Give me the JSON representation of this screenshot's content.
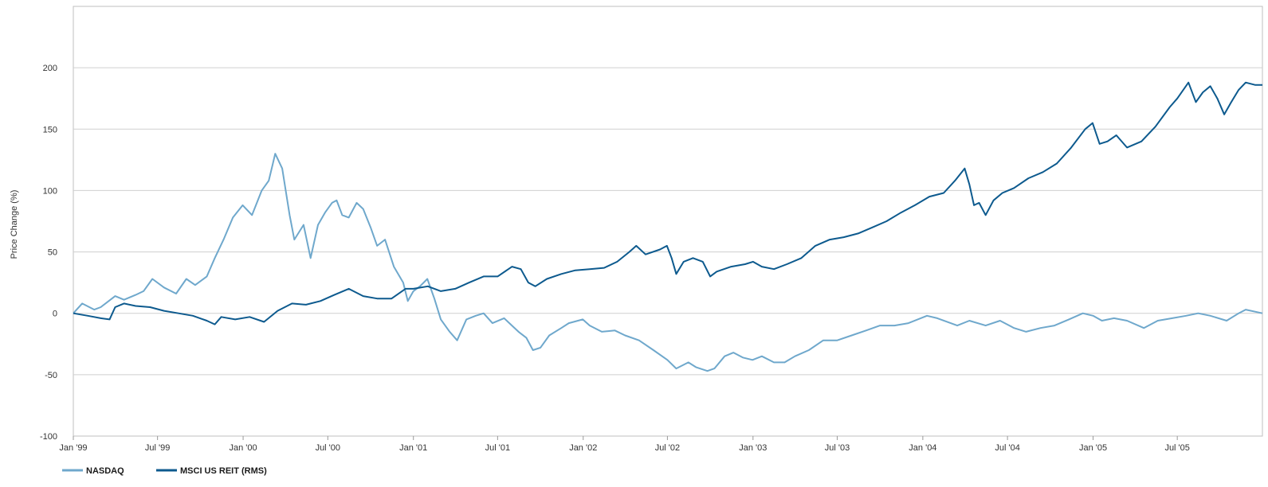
{
  "chart_data": {
    "type": "line",
    "title": "",
    "xlabel": "",
    "ylabel": "Price Change (%)",
    "ylim": [
      -100,
      250
    ],
    "yticks": [
      -100,
      -50,
      0,
      50,
      100,
      150,
      200
    ],
    "grid": true,
    "legend_position": "bottom-left",
    "x_axis": {
      "type": "date",
      "range": [
        "1999-01-01",
        "2005-12-31"
      ],
      "ticks": [
        {
          "date": "1999-01-01",
          "label": "Jan '99"
        },
        {
          "date": "1999-07-01",
          "label": "Jul '99"
        },
        {
          "date": "2000-01-01",
          "label": "Jan '00"
        },
        {
          "date": "2000-07-01",
          "label": "Jul '00"
        },
        {
          "date": "2001-01-01",
          "label": "Jan '01"
        },
        {
          "date": "2001-07-01",
          "label": "Jul '01"
        },
        {
          "date": "2002-01-01",
          "label": "Jan '02"
        },
        {
          "date": "2002-07-01",
          "label": "Jul '02"
        },
        {
          "date": "2003-01-01",
          "label": "Jan '03"
        },
        {
          "date": "2003-07-01",
          "label": "Jul '03"
        },
        {
          "date": "2004-01-01",
          "label": "Jan '04"
        },
        {
          "date": "2004-07-01",
          "label": "Jul '04"
        },
        {
          "date": "2005-01-01",
          "label": "Jan '05"
        },
        {
          "date": "2005-07-01",
          "label": "Jul '05"
        }
      ]
    },
    "series": [
      {
        "name": "NASDAQ",
        "color": "#6fa8cc",
        "points": [
          [
            "1999-01-01",
            0
          ],
          [
            "1999-01-20",
            8
          ],
          [
            "1999-02-15",
            3
          ],
          [
            "1999-03-01",
            5
          ],
          [
            "1999-04-01",
            14
          ],
          [
            "1999-04-20",
            11
          ],
          [
            "1999-05-15",
            15
          ],
          [
            "1999-06-01",
            18
          ],
          [
            "1999-06-20",
            28
          ],
          [
            "1999-07-15",
            21
          ],
          [
            "1999-08-10",
            16
          ],
          [
            "1999-09-01",
            28
          ],
          [
            "1999-09-20",
            23
          ],
          [
            "1999-10-15",
            30
          ],
          [
            "1999-11-01",
            45
          ],
          [
            "1999-11-20",
            60
          ],
          [
            "1999-12-10",
            78
          ],
          [
            "1999-12-31",
            88
          ],
          [
            "2000-01-20",
            80
          ],
          [
            "2000-02-10",
            100
          ],
          [
            "2000-02-25",
            108
          ],
          [
            "2000-03-05",
            122
          ],
          [
            "2000-03-10",
            130
          ],
          [
            "2000-03-25",
            118
          ],
          [
            "2000-04-10",
            80
          ],
          [
            "2000-04-20",
            60
          ],
          [
            "2000-05-10",
            72
          ],
          [
            "2000-05-25",
            45
          ],
          [
            "2000-06-10",
            72
          ],
          [
            "2000-06-25",
            82
          ],
          [
            "2000-07-10",
            90
          ],
          [
            "2000-07-20",
            92
          ],
          [
            "2000-08-01",
            80
          ],
          [
            "2000-08-15",
            78
          ],
          [
            "2000-09-01",
            90
          ],
          [
            "2000-09-15",
            85
          ],
          [
            "2000-10-01",
            70
          ],
          [
            "2000-10-15",
            55
          ],
          [
            "2000-11-01",
            60
          ],
          [
            "2000-11-20",
            38
          ],
          [
            "2000-12-10",
            25
          ],
          [
            "2000-12-20",
            10
          ],
          [
            "2001-01-01",
            18
          ],
          [
            "2001-01-15",
            22
          ],
          [
            "2001-01-31",
            28
          ],
          [
            "2001-02-15",
            12
          ],
          [
            "2001-03-01",
            -5
          ],
          [
            "2001-03-20",
            -15
          ],
          [
            "2001-04-05",
            -22
          ],
          [
            "2001-04-25",
            -5
          ],
          [
            "2001-05-15",
            -2
          ],
          [
            "2001-06-01",
            0
          ],
          [
            "2001-06-20",
            -8
          ],
          [
            "2001-07-15",
            -4
          ],
          [
            "2001-08-15",
            -15
          ],
          [
            "2001-09-01",
            -20
          ],
          [
            "2001-09-15",
            -30
          ],
          [
            "2001-10-01",
            -28
          ],
          [
            "2001-10-20",
            -18
          ],
          [
            "2001-11-15",
            -12
          ],
          [
            "2001-12-01",
            -8
          ],
          [
            "2001-12-31",
            -5
          ],
          [
            "2002-01-15",
            -10
          ],
          [
            "2002-02-10",
            -15
          ],
          [
            "2002-03-10",
            -14
          ],
          [
            "2002-04-01",
            -18
          ],
          [
            "2002-05-01",
            -22
          ],
          [
            "2002-06-01",
            -30
          ],
          [
            "2002-07-01",
            -38
          ],
          [
            "2002-07-20",
            -45
          ],
          [
            "2002-08-15",
            -40
          ],
          [
            "2002-09-01",
            -44
          ],
          [
            "2002-09-25",
            -47
          ],
          [
            "2002-10-10",
            -45
          ],
          [
            "2002-11-01",
            -35
          ],
          [
            "2002-11-20",
            -32
          ],
          [
            "2002-12-10",
            -36
          ],
          [
            "2002-12-31",
            -38
          ],
          [
            "2003-01-20",
            -35
          ],
          [
            "2003-02-15",
            -40
          ],
          [
            "2003-03-10",
            -40
          ],
          [
            "2003-04-01",
            -35
          ],
          [
            "2003-05-01",
            -30
          ],
          [
            "2003-06-01",
            -22
          ],
          [
            "2003-07-01",
            -22
          ],
          [
            "2003-08-01",
            -18
          ],
          [
            "2003-09-01",
            -14
          ],
          [
            "2003-10-01",
            -10
          ],
          [
            "2003-11-01",
            -10
          ],
          [
            "2003-12-01",
            -8
          ],
          [
            "2004-01-10",
            -2
          ],
          [
            "2004-02-01",
            -4
          ],
          [
            "2004-03-15",
            -10
          ],
          [
            "2004-04-10",
            -6
          ],
          [
            "2004-05-15",
            -10
          ],
          [
            "2004-06-15",
            -6
          ],
          [
            "2004-07-15",
            -12
          ],
          [
            "2004-08-10",
            -15
          ],
          [
            "2004-09-10",
            -12
          ],
          [
            "2004-10-10",
            -10
          ],
          [
            "2004-11-10",
            -5
          ],
          [
            "2004-12-10",
            0
          ],
          [
            "2005-01-01",
            -2
          ],
          [
            "2005-01-20",
            -6
          ],
          [
            "2005-02-15",
            -4
          ],
          [
            "2005-03-15",
            -6
          ],
          [
            "2005-04-20",
            -12
          ],
          [
            "2005-05-20",
            -6
          ],
          [
            "2005-06-20",
            -4
          ],
          [
            "2005-07-20",
            -2
          ],
          [
            "2005-08-15",
            0
          ],
          [
            "2005-09-10",
            -2
          ],
          [
            "2005-10-15",
            -6
          ],
          [
            "2005-11-10",
            0
          ],
          [
            "2005-11-25",
            3
          ],
          [
            "2005-12-31",
            0
          ]
        ]
      },
      {
        "name": "MSCI US REIT (RMS)",
        "color": "#0d5a8e",
        "points": [
          [
            "1999-01-01",
            0
          ],
          [
            "1999-02-01",
            -2
          ],
          [
            "1999-03-01",
            -4
          ],
          [
            "1999-03-20",
            -5
          ],
          [
            "1999-04-01",
            5
          ],
          [
            "1999-04-20",
            8
          ],
          [
            "1999-05-15",
            6
          ],
          [
            "1999-06-15",
            5
          ],
          [
            "1999-07-15",
            2
          ],
          [
            "1999-08-15",
            0
          ],
          [
            "1999-09-15",
            -2
          ],
          [
            "1999-10-15",
            -6
          ],
          [
            "1999-11-01",
            -9
          ],
          [
            "1999-11-15",
            -3
          ],
          [
            "1999-12-15",
            -5
          ],
          [
            "2000-01-15",
            -3
          ],
          [
            "2000-02-15",
            -7
          ],
          [
            "2000-03-15",
            2
          ],
          [
            "2000-04-15",
            8
          ],
          [
            "2000-05-15",
            7
          ],
          [
            "2000-06-15",
            10
          ],
          [
            "2000-07-15",
            15
          ],
          [
            "2000-08-15",
            20
          ],
          [
            "2000-09-15",
            14
          ],
          [
            "2000-10-15",
            12
          ],
          [
            "2000-11-15",
            12
          ],
          [
            "2000-12-15",
            20
          ],
          [
            "2001-01-01",
            20
          ],
          [
            "2001-02-01",
            22
          ],
          [
            "2001-03-01",
            18
          ],
          [
            "2001-04-01",
            20
          ],
          [
            "2001-05-01",
            25
          ],
          [
            "2001-06-01",
            30
          ],
          [
            "2001-07-01",
            30
          ],
          [
            "2001-08-01",
            38
          ],
          [
            "2001-08-20",
            36
          ],
          [
            "2001-09-05",
            25
          ],
          [
            "2001-09-20",
            22
          ],
          [
            "2001-10-15",
            28
          ],
          [
            "2001-11-15",
            32
          ],
          [
            "2001-12-15",
            35
          ],
          [
            "2002-01-15",
            36
          ],
          [
            "2002-02-15",
            37
          ],
          [
            "2002-03-15",
            42
          ],
          [
            "2002-04-10",
            50
          ],
          [
            "2002-04-25",
            55
          ],
          [
            "2002-05-15",
            48
          ],
          [
            "2002-06-15",
            52
          ],
          [
            "2002-06-30",
            55
          ],
          [
            "2002-07-10",
            45
          ],
          [
            "2002-07-20",
            32
          ],
          [
            "2002-08-05",
            42
          ],
          [
            "2002-08-25",
            45
          ],
          [
            "2002-09-15",
            42
          ],
          [
            "2002-10-01",
            30
          ],
          [
            "2002-10-15",
            34
          ],
          [
            "2002-11-15",
            38
          ],
          [
            "2002-12-15",
            40
          ],
          [
            "2003-01-01",
            42
          ],
          [
            "2003-01-20",
            38
          ],
          [
            "2003-02-15",
            36
          ],
          [
            "2003-03-15",
            40
          ],
          [
            "2003-04-15",
            45
          ],
          [
            "2003-05-15",
            55
          ],
          [
            "2003-06-15",
            60
          ],
          [
            "2003-07-15",
            62
          ],
          [
            "2003-08-15",
            65
          ],
          [
            "2003-09-15",
            70
          ],
          [
            "2003-10-15",
            75
          ],
          [
            "2003-11-15",
            82
          ],
          [
            "2003-12-15",
            88
          ],
          [
            "2004-01-15",
            95
          ],
          [
            "2004-02-15",
            98
          ],
          [
            "2004-03-10",
            108
          ],
          [
            "2004-03-31",
            118
          ],
          [
            "2004-04-10",
            105
          ],
          [
            "2004-04-20",
            88
          ],
          [
            "2004-05-01",
            90
          ],
          [
            "2004-05-15",
            80
          ],
          [
            "2004-06-01",
            92
          ],
          [
            "2004-06-20",
            98
          ],
          [
            "2004-07-15",
            102
          ],
          [
            "2004-08-15",
            110
          ],
          [
            "2004-09-15",
            115
          ],
          [
            "2004-10-15",
            122
          ],
          [
            "2004-11-15",
            135
          ],
          [
            "2004-12-15",
            150
          ],
          [
            "2004-12-31",
            155
          ],
          [
            "2005-01-15",
            138
          ],
          [
            "2005-02-01",
            140
          ],
          [
            "2005-02-20",
            145
          ],
          [
            "2005-03-15",
            135
          ],
          [
            "2005-04-15",
            140
          ],
          [
            "2005-05-15",
            152
          ],
          [
            "2005-06-15",
            168
          ],
          [
            "2005-07-01",
            175
          ],
          [
            "2005-07-25",
            188
          ],
          [
            "2005-08-10",
            172
          ],
          [
            "2005-08-25",
            180
          ],
          [
            "2005-09-10",
            185
          ],
          [
            "2005-09-25",
            175
          ],
          [
            "2005-10-10",
            162
          ],
          [
            "2005-10-25",
            172
          ],
          [
            "2005-11-10",
            182
          ],
          [
            "2005-11-25",
            188
          ],
          [
            "2005-12-15",
            186
          ],
          [
            "2005-12-31",
            186
          ]
        ]
      }
    ]
  }
}
